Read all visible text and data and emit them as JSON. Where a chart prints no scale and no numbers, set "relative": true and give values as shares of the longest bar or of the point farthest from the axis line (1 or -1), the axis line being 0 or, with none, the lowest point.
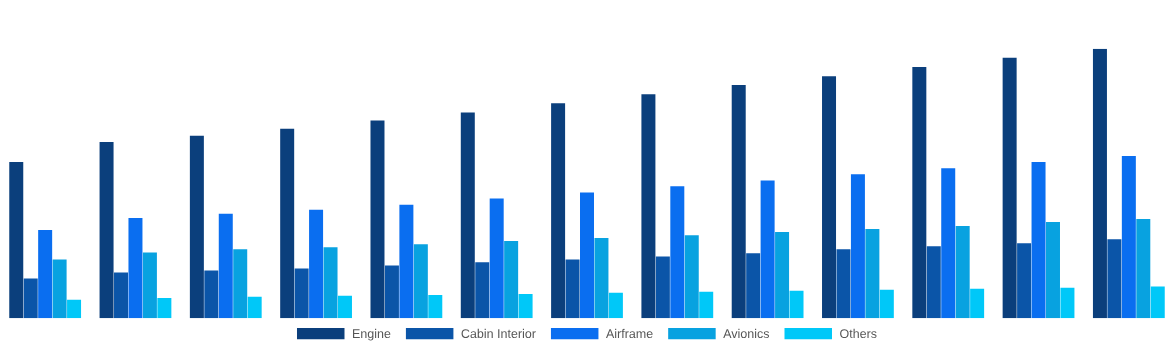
{
  "chart_data": {
    "type": "bar",
    "relative": true,
    "legend": "bottom",
    "categories": [
      null,
      null,
      null,
      null,
      null,
      null,
      null,
      null,
      null,
      null,
      null,
      null,
      null
    ],
    "series": [
      {
        "name": "Engine",
        "color": "#0b3f7c",
        "values": [
          0.579,
          0.654,
          0.677,
          0.703,
          0.733,
          0.763,
          0.797,
          0.831,
          0.865,
          0.898,
          0.932,
          0.966,
          1
        ]
      },
      {
        "name": "Cabin Interior",
        "color": "#0b55a8",
        "values": [
          0.147,
          0.169,
          0.177,
          0.184,
          0.195,
          0.207,
          0.218,
          0.229,
          0.241,
          0.256,
          0.267,
          0.278,
          0.293
        ]
      },
      {
        "name": "Airframe",
        "color": "#0a6ef0",
        "values": [
          0.327,
          0.372,
          0.387,
          0.402,
          0.421,
          0.444,
          0.466,
          0.489,
          0.511,
          0.534,
          0.556,
          0.579,
          0.602
        ]
      },
      {
        "name": "Avionics",
        "color": "#08a2e0",
        "values": [
          0.218,
          0.244,
          0.256,
          0.263,
          0.274,
          0.286,
          0.297,
          0.308,
          0.32,
          0.331,
          0.342,
          0.357,
          0.368
        ]
      },
      {
        "name": "Others",
        "color": "#00c8f8",
        "values": [
          0.068,
          0.075,
          0.079,
          0.083,
          0.086,
          0.09,
          0.094,
          0.098,
          0.102,
          0.105,
          0.109,
          0.113,
          0.117
        ]
      }
    ]
  }
}
